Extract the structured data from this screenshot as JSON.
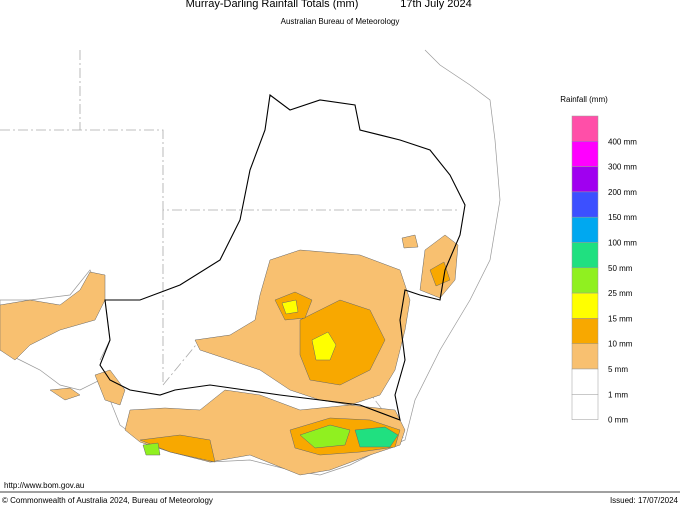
{
  "header": {
    "title": "Murray-Darling Rainfall Totals (mm)",
    "date": "17th July 2024",
    "subtitle": "Australian Bureau of Meteorology"
  },
  "legend": {
    "title": "Rainfall (mm)",
    "items": [
      {
        "label": "400 mm",
        "color": "#ff4fa8"
      },
      {
        "label": "300 mm",
        "color": "#ff00ff"
      },
      {
        "label": "200 mm",
        "color": "#a000f0"
      },
      {
        "label": "150 mm",
        "color": "#3c50ff"
      },
      {
        "label": "100 mm",
        "color": "#00a8f0"
      },
      {
        "label": "50 mm",
        "color": "#20e080"
      },
      {
        "label": "25 mm",
        "color": "#90f020"
      },
      {
        "label": "15 mm",
        "color": "#ffff00"
      },
      {
        "label": "10 mm",
        "color": "#f8a800"
      },
      {
        "label": "5 mm",
        "color": "#f8c070"
      },
      {
        "label": "1 mm",
        "color": "#ffffff"
      },
      {
        "label": "0 mm",
        "color": "#ffffff"
      }
    ]
  },
  "footer": {
    "url": "http://www.bom.gov.au",
    "copyright": "© Commonwealth of Australia 2024, Bureau of Meteorology",
    "issued": "Issued: 17/07/2024"
  }
}
